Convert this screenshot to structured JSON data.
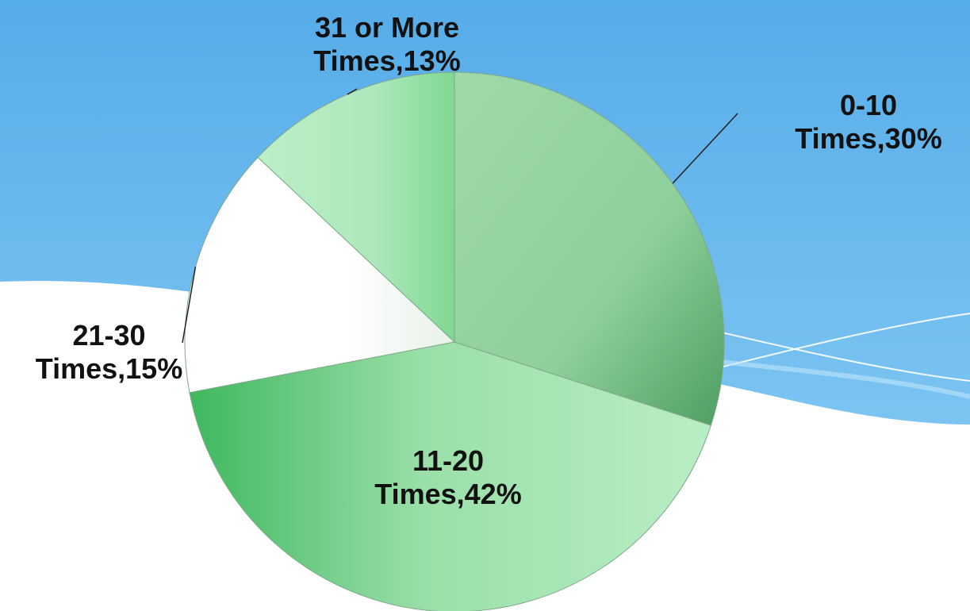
{
  "colors": {
    "sky_top": "#5BB0EA",
    "sky_bottom": "#8FD0F7",
    "slice_0_10": "#98D8A4",
    "slice_11_20": "#8FDDA0",
    "slice_21_30": "#F4F7F4",
    "slice_31_more": "#A8E6B8",
    "leader_line": "#222222"
  },
  "chart_data": {
    "type": "pie",
    "title": "",
    "slices": [
      {
        "key": "0-10",
        "label_line1": "0-10",
        "label_line2": "Times,30%",
        "value": 30
      },
      {
        "key": "11-20",
        "label_line1": "11-20",
        "label_line2": "Times,42%",
        "value": 42
      },
      {
        "key": "21-30",
        "label_line1": "21-30",
        "label_line2": "Times,15%",
        "value": 15
      },
      {
        "key": "31-more",
        "label_line1": "31 or More",
        "label_line2": "Times,13%",
        "value": 13
      }
    ]
  }
}
